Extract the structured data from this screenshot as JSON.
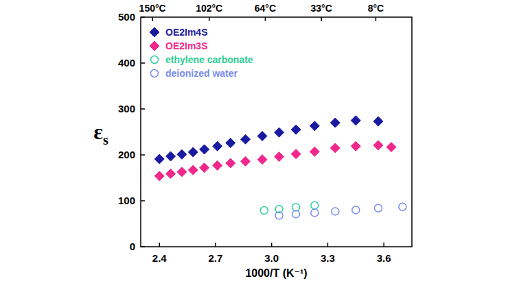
{
  "chart_data": {
    "type": "scatter",
    "x_label": "1000/T (K⁻¹)",
    "y_label": "εs",
    "xlim": [
      2.3,
      3.75
    ],
    "ylim": [
      0,
      500
    ],
    "xticks": [
      {
        "value": 2.4,
        "label": "2.4"
      },
      {
        "value": 2.7,
        "label": "2.7"
      },
      {
        "value": 3.0,
        "label": "3.0"
      },
      {
        "value": 3.3,
        "label": "3.3"
      },
      {
        "value": 3.6,
        "label": "3.6"
      }
    ],
    "yticks": [
      0,
      100,
      200,
      300,
      400,
      500
    ],
    "x2ticks": [
      {
        "value": 2.363,
        "label": "150°C"
      },
      {
        "value": 2.666,
        "label": "102°C"
      },
      {
        "value": 2.966,
        "label": "64°C"
      },
      {
        "value": 3.266,
        "label": "33°C"
      },
      {
        "value": 3.557,
        "label": "8°C"
      }
    ],
    "legend": "upper left",
    "grid": false,
    "series": [
      {
        "name": "OE2Im4S",
        "color": "#1a1aa0",
        "marker": "diamond",
        "x": [
          2.4,
          2.46,
          2.52,
          2.58,
          2.64,
          2.71,
          2.78,
          2.86,
          2.95,
          3.04,
          3.13,
          3.23,
          3.34,
          3.45,
          3.57
        ],
        "values": [
          191,
          197,
          201,
          206,
          212,
          219,
          226,
          234,
          241,
          249,
          255,
          263,
          270,
          275,
          273
        ]
      },
      {
        "name": "OE2Im3S",
        "color": "#f0288c",
        "marker": "diamond",
        "x": [
          2.4,
          2.46,
          2.52,
          2.58,
          2.64,
          2.71,
          2.78,
          2.86,
          2.95,
          3.04,
          3.13,
          3.23,
          3.34,
          3.45,
          3.57,
          3.64
        ],
        "values": [
          154,
          159,
          163,
          167,
          172,
          177,
          182,
          186,
          190,
          196,
          202,
          207,
          215,
          219,
          221,
          217
        ]
      },
      {
        "name": "ethylene carbonate",
        "color": "#2ecf94",
        "marker": "open_circle",
        "x": [
          2.96,
          3.04,
          3.13,
          3.23
        ],
        "values": [
          79,
          82,
          86,
          90
        ]
      },
      {
        "name": "deionized water",
        "color": "#7a8cf0",
        "marker": "open_circle",
        "x": [
          3.04,
          3.13,
          3.23,
          3.34,
          3.45,
          3.57,
          3.7
        ],
        "values": [
          68,
          71,
          74,
          77,
          80,
          84,
          87
        ]
      }
    ]
  }
}
